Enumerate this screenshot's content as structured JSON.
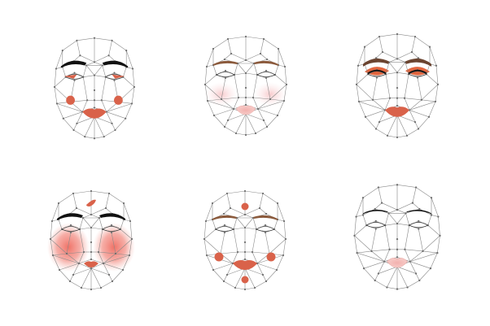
{
  "figure": {
    "layout": {
      "rows": 2,
      "columns": 3
    },
    "colors": {
      "mesh_line": "#8a8a8a",
      "mesh_dot": "#6e6e6e",
      "accent": "#d9624a",
      "blush": "#f08a7e",
      "lip_pale": "#f4b9b4",
      "brow_black": "#111111",
      "brow_brown": "#8b5a3c"
    },
    "faces": [
      {
        "name": "face-1",
        "brows": "black-bold",
        "eyes": "red-wing",
        "cheeks": "red-dots",
        "lips": "red",
        "extras": []
      },
      {
        "name": "face-2",
        "brows": "brown",
        "eyes": "plain",
        "cheeks": "pale-pink-glow",
        "lips": "pale-pink",
        "extras": []
      },
      {
        "name": "face-3",
        "brows": "brown-bold",
        "eyes": "orange-shadow",
        "cheeks": "none",
        "lips": "red",
        "extras": []
      },
      {
        "name": "face-4",
        "brows": "black-bold",
        "eyes": "plain",
        "cheeks": "large-red-blush",
        "lips": "red-small",
        "extras": [
          "forehead-teardrop"
        ]
      },
      {
        "name": "face-5",
        "brows": "brown",
        "eyes": "plain",
        "cheeks": "red-dots",
        "lips": "red",
        "extras": [
          "forehead-dot",
          "chin-dot"
        ]
      },
      {
        "name": "face-6",
        "brows": "thin-black",
        "eyes": "plain",
        "cheeks": "none",
        "lips": "pale-pink",
        "extras": []
      }
    ]
  }
}
